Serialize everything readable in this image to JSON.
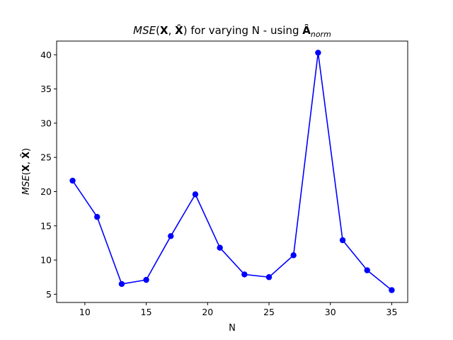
{
  "chart_data": {
    "type": "line",
    "title": {
      "pre_italic": "MSE",
      "open": "(",
      "x_bold": "X",
      "comma": ", ",
      "xhat_bold": "X̂",
      "close": ")",
      "mid": " for varying N - using ",
      "a_bold": "Â",
      "a_sub": "norm"
    },
    "xlabel": "N",
    "ylabel": {
      "pre_italic": "MSE",
      "open": "(",
      "x_bold": "X",
      "comma": ", ",
      "xhat_bold": "X̂",
      "close": ")"
    },
    "xlim": [
      7.7,
      36.3
    ],
    "ylim": [
      3.8,
      42.0
    ],
    "xticks": [
      10,
      15,
      20,
      25,
      30,
      35
    ],
    "yticks": [
      5,
      10,
      15,
      20,
      25,
      30,
      35,
      40
    ],
    "grid": false,
    "series": [
      {
        "color": "#0000ff",
        "marker": "circle",
        "x": [
          9,
          11,
          13,
          15,
          17,
          19,
          21,
          23,
          25,
          27,
          29,
          31,
          33,
          35
        ],
        "y": [
          21.6,
          16.3,
          6.5,
          7.1,
          13.5,
          19.6,
          11.8,
          7.9,
          7.5,
          10.7,
          40.3,
          12.9,
          8.5,
          5.6
        ]
      }
    ]
  }
}
